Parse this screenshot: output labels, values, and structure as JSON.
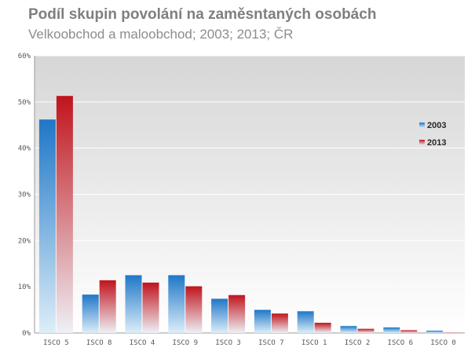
{
  "chart_data": {
    "type": "bar",
    "title": "Podíl skupin povolání na zaměsntaných osobách",
    "subtitle": "Velkoobchod a maloobchod; 2003; 2013; ČR",
    "xlabel": "",
    "ylabel": "",
    "categories": [
      "ISCO 5",
      "ISCO 8",
      "ISCO 4",
      "ISCO 9",
      "ISCO 3",
      "ISCO 7",
      "ISCO 1",
      "ISCO 2",
      "ISCO 6",
      "ISCO 0"
    ],
    "series": [
      {
        "name": "2003",
        "values": [
          46.2,
          8.3,
          12.5,
          12.5,
          7.4,
          5.0,
          4.7,
          1.5,
          1.2,
          0.5
        ]
      },
      {
        "name": "2013",
        "values": [
          51.3,
          11.4,
          10.9,
          10.1,
          8.2,
          4.2,
          2.2,
          0.9,
          0.6,
          0.1
        ]
      }
    ],
    "ylim": [
      0,
      60
    ],
    "yticks": [
      "0%",
      "10%",
      "20%",
      "30%",
      "40%",
      "50%",
      "60%"
    ],
    "grid": true,
    "legend_position": "right",
    "colors": {
      "series_2003_top": "#1f77c8",
      "series_2003_bottom": "#ddeef8",
      "series_2013_top": "#c0141c",
      "series_2013_bottom": "#eef0f6",
      "plot_background_top": "#d6d6d6",
      "plot_background_bottom": "#ffffff",
      "gridline": "#ffffff",
      "text": "#595959"
    }
  }
}
